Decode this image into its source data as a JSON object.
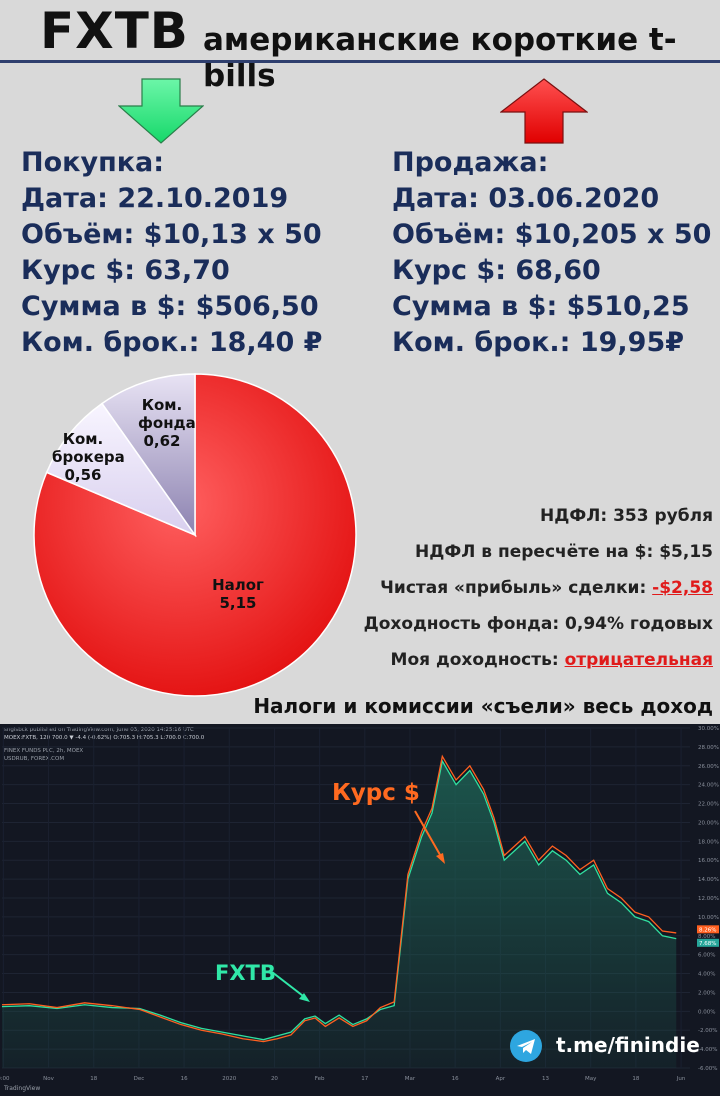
{
  "header": {
    "ticker": "FXTB",
    "subtitle": "американские короткие t-bills"
  },
  "buy": {
    "heading": "Покупка:",
    "date": "Дата: 22.10.2019",
    "volume": "Объём: $10,13 х 50",
    "rate": "Курс $: 63,70",
    "sum": "Сумма в $: $506,50",
    "commission": "Ком. брок.: 18,40 ₽"
  },
  "sell": {
    "heading": "Продажа:",
    "date": "Дата: 03.06.2020",
    "volume": "Объём: $10,205 х 50",
    "rate": "Курс $: 68,60",
    "sum": "Сумма в $: $510,25",
    "commission": "Ком. брок.: 19,95₽"
  },
  "colors": {
    "buy_arrow": "#3ff58a",
    "sell_arrow": "#ff1a1a",
    "trade_text": "#1a2d5a",
    "negative": "#e01b1b",
    "tax_slice": "#f02020",
    "broker_slice": "#ece6f6",
    "fund_slice": "#a8a0c4",
    "fxtb_line": "#30e0a0",
    "usd_line": "#ff6020"
  },
  "stats": {
    "ndfl": "НДФЛ: 353 рубля",
    "ndfl_usd": "НДФЛ в пересчёте  на $: $5,15",
    "net_profit_label": "Чистая «прибыль» сделки: ",
    "net_profit_value": "-$2,58",
    "fund_yield": "Доходность фонда: 0,94% годовых",
    "my_yield_label": "Моя доходность: ",
    "my_yield_value": "отрицательная",
    "conclusion": "Налоги и комиссии «съели» весь доход"
  },
  "chart_data": [
    {
      "type": "pie",
      "slices": [
        {
          "label": "Налог",
          "value": 5.15,
          "value_text": "5,15"
        },
        {
          "label": "Ком. брокера",
          "value": 0.56,
          "value_text": "0,56"
        },
        {
          "label": "Ком. фонда",
          "value": 0.62,
          "value_text": "0,62"
        }
      ]
    },
    {
      "type": "line",
      "header": {
        "line1": "snglsbck published on TradingView.com, June 03, 2020 14:25:16 UTC",
        "line2": "MOEX:FXTB, 120  700.0 ▼ -4.4 (-0.62%)  O:705.3  H:705.3  L:700.0  C:700.0",
        "line3": "FINEX FUNDS PLC, 2h, MOEX",
        "line4": "USDRUB, FOREX.COM"
      },
      "x_ticks": [
        "0:00",
        "Nov",
        "18",
        "Dec",
        "16",
        "2020",
        "20",
        "Feb",
        "17",
        "Mar",
        "16",
        "Apr",
        "13",
        "May",
        "18",
        "Jun"
      ],
      "y_ticks": [
        "30.00%",
        "28.00%",
        "26.00%",
        "24.00%",
        "22.00%",
        "20.00%",
        "18.00%",
        "16.00%",
        "14.00%",
        "12.00%",
        "10.00%",
        "8.00%",
        "6.00%",
        "4.00%",
        "2.00%",
        "0.00%",
        "-2.00%",
        "-4.00%",
        "-6.00%"
      ],
      "ylim": [
        -6,
        30
      ],
      "last_values": {
        "usd": "8.26%",
        "fxtb": "7.68%"
      },
      "annotations": {
        "usd": "Курс $",
        "fxtb": "FXTB"
      },
      "series": [
        {
          "name": "FXTB",
          "key": "fxtb",
          "points": [
            [
              0,
              0.5
            ],
            [
              0.04,
              0.6
            ],
            [
              0.08,
              0.3
            ],
            [
              0.12,
              0.7
            ],
            [
              0.16,
              0.4
            ],
            [
              0.2,
              0.3
            ],
            [
              0.23,
              -0.4
            ],
            [
              0.26,
              -1.2
            ],
            [
              0.29,
              -1.8
            ],
            [
              0.32,
              -2.2
            ],
            [
              0.35,
              -2.6
            ],
            [
              0.38,
              -3.0
            ],
            [
              0.4,
              -2.6
            ],
            [
              0.42,
              -2.2
            ],
            [
              0.44,
              -0.8
            ],
            [
              0.455,
              -0.5
            ],
            [
              0.47,
              -1.3
            ],
            [
              0.49,
              -0.4
            ],
            [
              0.51,
              -1.4
            ],
            [
              0.53,
              -0.8
            ],
            [
              0.55,
              0.2
            ],
            [
              0.57,
              0.6
            ],
            [
              0.59,
              14.0
            ],
            [
              0.61,
              18.5
            ],
            [
              0.625,
              21.0
            ],
            [
              0.64,
              26.5
            ],
            [
              0.66,
              24.0
            ],
            [
              0.68,
              25.5
            ],
            [
              0.7,
              23.0
            ],
            [
              0.715,
              20.0
            ],
            [
              0.73,
              16.0
            ],
            [
              0.76,
              18.0
            ],
            [
              0.78,
              15.5
            ],
            [
              0.8,
              17.0
            ],
            [
              0.82,
              16.0
            ],
            [
              0.84,
              14.5
            ],
            [
              0.86,
              15.5
            ],
            [
              0.88,
              12.5
            ],
            [
              0.9,
              11.5
            ],
            [
              0.92,
              10.0
            ],
            [
              0.94,
              9.5
            ],
            [
              0.96,
              8.0
            ],
            [
              0.98,
              7.7
            ]
          ]
        },
        {
          "name": "USDRUB",
          "key": "usd",
          "points": [
            [
              0,
              0.7
            ],
            [
              0.04,
              0.8
            ],
            [
              0.08,
              0.4
            ],
            [
              0.12,
              0.9
            ],
            [
              0.16,
              0.6
            ],
            [
              0.2,
              0.2
            ],
            [
              0.23,
              -0.6
            ],
            [
              0.26,
              -1.4
            ],
            [
              0.29,
              -2.0
            ],
            [
              0.32,
              -2.4
            ],
            [
              0.35,
              -2.9
            ],
            [
              0.38,
              -3.2
            ],
            [
              0.4,
              -2.9
            ],
            [
              0.42,
              -2.5
            ],
            [
              0.44,
              -1.0
            ],
            [
              0.455,
              -0.7
            ],
            [
              0.47,
              -1.6
            ],
            [
              0.49,
              -0.7
            ],
            [
              0.51,
              -1.6
            ],
            [
              0.53,
              -1.0
            ],
            [
              0.55,
              0.4
            ],
            [
              0.57,
              1.0
            ],
            [
              0.59,
              14.5
            ],
            [
              0.61,
              19.0
            ],
            [
              0.625,
              21.5
            ],
            [
              0.64,
              27.0
            ],
            [
              0.66,
              24.5
            ],
            [
              0.68,
              26.0
            ],
            [
              0.7,
              23.5
            ],
            [
              0.715,
              20.5
            ],
            [
              0.73,
              16.5
            ],
            [
              0.76,
              18.5
            ],
            [
              0.78,
              16.0
            ],
            [
              0.8,
              17.5
            ],
            [
              0.82,
              16.5
            ],
            [
              0.84,
              15.0
            ],
            [
              0.86,
              16.0
            ],
            [
              0.88,
              13.0
            ],
            [
              0.9,
              12.0
            ],
            [
              0.92,
              10.5
            ],
            [
              0.94,
              10.0
            ],
            [
              0.96,
              8.5
            ],
            [
              0.98,
              8.3
            ]
          ]
        }
      ]
    }
  ],
  "social": {
    "link": "t.me/finindie"
  },
  "brand": {
    "footer": "TradingView"
  }
}
